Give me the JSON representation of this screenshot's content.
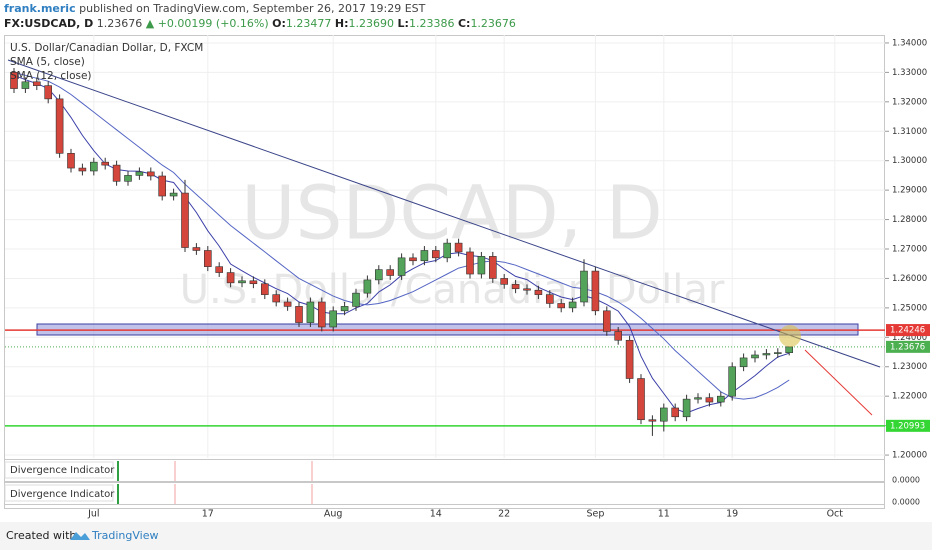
{
  "header": {
    "author": "frank.meric",
    "published": "published on TradingView.com, September 26, 2017 19:29 EST",
    "symbol": "FX:USDCAD, D",
    "price": "1.23676",
    "arrow": "▲",
    "change": "+0.00199 (+0.16%)",
    "ohlc": [
      {
        "key": "O:",
        "value": "1.23477"
      },
      {
        "key": "H:",
        "value": "1.23690"
      },
      {
        "key": "L:",
        "value": "1.23386"
      },
      {
        "key": "C:",
        "value": "1.23676"
      }
    ]
  },
  "chart_data": {
    "type": "candlestick",
    "title": "U.S. Dollar/Canadian Dollar, D, FXCM",
    "watermark": [
      "USDCAD, D",
      "U.S. Dollar/Canadian Dollar"
    ],
    "categories": [
      null,
      null,
      null,
      null,
      null,
      null,
      null,
      "Jul",
      null,
      null,
      null,
      null,
      null,
      null,
      null,
      null,
      null,
      "17",
      null,
      null,
      null,
      null,
      null,
      null,
      null,
      null,
      null,
      null,
      "Aug",
      null,
      null,
      null,
      null,
      null,
      null,
      null,
      null,
      "14",
      null,
      null,
      null,
      null,
      null,
      "22",
      null,
      null,
      null,
      null,
      null,
      null,
      null,
      "Sep",
      null,
      null,
      null,
      null,
      null,
      "11",
      null,
      null,
      null,
      null,
      null,
      "19",
      null,
      null,
      null,
      null,
      null,
      null,
      null,
      null,
      "Oct",
      null,
      null,
      null
    ],
    "open": [
      1.33,
      1.3245,
      1.3268,
      1.3255,
      1.321,
      1.3025,
      1.2975,
      1.2965,
      1.2995,
      1.2985,
      1.293,
      1.295,
      1.2962,
      1.2948,
      1.288,
      1.289,
      1.2705,
      1.2695,
      1.264,
      1.262,
      1.2585,
      1.2592,
      1.2582,
      1.2545,
      1.252,
      1.2505,
      1.245,
      1.252,
      1.2435,
      1.249,
      1.2505,
      1.255,
      1.2595,
      1.263,
      1.261,
      1.267,
      1.266,
      1.2695,
      1.267,
      1.272,
      1.269,
      1.2615,
      1.2675,
      1.26,
      1.258,
      1.2565,
      1.256,
      1.2545,
      1.2515,
      1.25,
      1.252,
      1.2625,
      1.249,
      1.242,
      1.239,
      1.226,
      1.212,
      1.2115,
      1.216,
      1.213,
      1.219,
      1.2195,
      1.218,
      1.22,
      1.23,
      1.233,
      1.234,
      1.2345,
      1.23477,
      null,
      null,
      null,
      null,
      null,
      null,
      null
    ],
    "high": [
      1.3315,
      1.3283,
      1.3283,
      1.327,
      1.3225,
      1.304,
      1.299,
      1.301,
      1.301,
      1.3,
      1.2965,
      1.2977,
      1.2977,
      1.2963,
      1.2905,
      1.2935,
      1.272,
      1.271,
      1.2655,
      1.2635,
      1.2607,
      1.2607,
      1.2597,
      1.256,
      1.2535,
      1.252,
      1.2535,
      1.2535,
      1.2505,
      1.252,
      1.2565,
      1.261,
      1.2645,
      1.2645,
      1.2685,
      1.2685,
      1.271,
      1.271,
      1.2735,
      1.2735,
      1.2705,
      1.269,
      1.269,
      1.2615,
      1.2595,
      1.258,
      1.2575,
      1.256,
      1.253,
      1.2535,
      1.2665,
      1.264,
      1.2505,
      1.2435,
      1.2405,
      1.2275,
      1.2135,
      1.2175,
      1.2175,
      1.2205,
      1.221,
      1.221,
      1.2215,
      1.2315,
      1.2345,
      1.2355,
      1.236,
      1.2363,
      1.2369,
      null,
      null,
      null,
      null,
      null,
      null,
      null
    ],
    "low": [
      1.323,
      1.323,
      1.324,
      1.3195,
      1.301,
      1.296,
      1.295,
      1.295,
      1.297,
      1.2915,
      1.2915,
      1.2935,
      1.2933,
      1.2865,
      1.2865,
      1.269,
      1.268,
      1.2625,
      1.2605,
      1.257,
      1.257,
      1.2567,
      1.253,
      1.2505,
      1.249,
      1.2435,
      1.2435,
      1.242,
      1.242,
      1.2475,
      1.249,
      1.2535,
      1.258,
      1.2595,
      1.2595,
      1.2645,
      1.2645,
      1.2655,
      1.2655,
      1.2675,
      1.26,
      1.26,
      1.2585,
      1.2565,
      1.255,
      1.2545,
      1.253,
      1.25,
      1.2485,
      1.2485,
      1.2505,
      1.2475,
      1.2405,
      1.2375,
      1.2245,
      1.2105,
      1.2065,
      1.208,
      1.2115,
      1.2115,
      1.2175,
      1.2165,
      1.2165,
      1.2185,
      1.2285,
      1.2315,
      1.2325,
      1.233,
      1.23386,
      null,
      null,
      null,
      null,
      null,
      null,
      null
    ],
    "close": [
      1.3245,
      1.3268,
      1.3255,
      1.321,
      1.3025,
      1.2975,
      1.2965,
      1.2995,
      1.2985,
      1.293,
      1.295,
      1.2962,
      1.2948,
      1.288,
      1.289,
      1.2705,
      1.2695,
      1.264,
      1.262,
      1.2585,
      1.2592,
      1.2582,
      1.2545,
      1.252,
      1.2505,
      1.245,
      1.252,
      1.2435,
      1.249,
      1.2505,
      1.255,
      1.2595,
      1.263,
      1.261,
      1.267,
      1.266,
      1.2695,
      1.267,
      1.272,
      1.269,
      1.2615,
      1.2675,
      1.26,
      1.258,
      1.2565,
      1.256,
      1.2545,
      1.2515,
      1.25,
      1.252,
      1.2625,
      1.249,
      1.242,
      1.239,
      1.226,
      1.212,
      1.2115,
      1.216,
      1.213,
      1.219,
      1.2195,
      1.218,
      1.22,
      1.23,
      1.233,
      1.234,
      1.2345,
      1.2348,
      1.23676,
      null,
      null,
      null,
      null,
      null,
      null,
      null
    ],
    "up_color": "#53a35a",
    "down_color": "#d4453b",
    "series": [
      {
        "name": "SMA (5, close)",
        "color": "#3c40a8",
        "values": [
          1.329,
          1.3275,
          1.3262,
          1.3245,
          1.3201,
          1.3147,
          1.3086,
          1.3034,
          1.2989,
          1.297,
          1.2965,
          1.2964,
          1.2955,
          1.2934,
          1.2926,
          1.2877,
          1.2824,
          1.2762,
          1.271,
          1.2649,
          1.2626,
          1.2604,
          1.2585,
          1.2565,
          1.2549,
          1.252,
          1.2508,
          1.2486,
          1.248,
          1.248,
          1.25,
          1.2515,
          1.2554,
          1.2578,
          1.2611,
          1.2633,
          1.2653,
          1.2661,
          1.2683,
          1.2687,
          1.2678,
          1.2674,
          1.266,
          1.2632,
          1.2607,
          1.2596,
          1.257,
          1.2553,
          1.2537,
          1.2528,
          1.2541,
          1.253,
          1.2511,
          1.2489,
          1.2437,
          1.2336,
          1.2261,
          1.2209,
          1.2157,
          1.2143,
          1.2158,
          1.2171,
          1.2179,
          1.2213,
          1.2241,
          1.227,
          1.2303,
          1.2333,
          1.2346,
          null,
          null,
          null,
          null,
          null,
          null,
          null
        ]
      },
      {
        "name": "SMA (12, close)",
        "color": "#5566c4",
        "values": [
          1.33,
          1.329,
          1.328,
          1.327,
          1.325,
          1.3225,
          1.3195,
          1.3165,
          1.3135,
          1.3105,
          1.3075,
          1.3045,
          1.3015,
          1.2985,
          1.296,
          1.292,
          1.2885,
          1.285,
          1.2815,
          1.278,
          1.275,
          1.272,
          1.269,
          1.266,
          1.263,
          1.26,
          1.258,
          1.256,
          1.254,
          1.2525,
          1.2515,
          1.251,
          1.2515,
          1.2525,
          1.254,
          1.2555,
          1.2575,
          1.2595,
          1.2615,
          1.2635,
          1.2645,
          1.2655,
          1.266,
          1.2655,
          1.2645,
          1.263,
          1.2615,
          1.26,
          1.2585,
          1.257,
          1.2565,
          1.2555,
          1.254,
          1.252,
          1.2495,
          1.2465,
          1.243,
          1.2395,
          1.2355,
          1.232,
          1.2285,
          1.225,
          1.2215,
          1.2195,
          1.219,
          1.2195,
          1.221,
          1.223,
          1.2255,
          null,
          null,
          null,
          null,
          null,
          null,
          null
        ]
      }
    ],
    "levels": [
      {
        "value": 1.24246,
        "color": "#e53935"
      },
      {
        "value": 1.23676,
        "color": "#4caf50"
      },
      {
        "value": 1.20993,
        "color": "#33d633"
      }
    ],
    "ylim": [
      1.199,
      1.3427
    ],
    "yticks": [
      {
        "value": 1.34,
        "label": "1.34000"
      },
      {
        "value": 1.33,
        "label": "1.33000"
      },
      {
        "value": 1.32,
        "label": "1.32000"
      },
      {
        "value": 1.31,
        "label": "1.31000"
      },
      {
        "value": 1.3,
        "label": "1.30000"
      },
      {
        "value": 1.29,
        "label": "1.29000"
      },
      {
        "value": 1.28,
        "label": "1.28000"
      },
      {
        "value": 1.27,
        "label": "1.27000"
      },
      {
        "value": 1.26,
        "label": "1.26000"
      },
      {
        "value": 1.25,
        "label": "1.25000"
      },
      {
        "value": 1.24,
        "label": "1.24000"
      },
      {
        "value": 1.23,
        "label": "1.23000"
      },
      {
        "value": 1.22,
        "label": "1.22000"
      },
      {
        "value": 1.21,
        "label": "1.21000"
      },
      {
        "value": 1.2,
        "label": "1.20000"
      }
    ],
    "grid": true
  },
  "indicators": [
    {
      "title": "Divergence Indicator",
      "tick": "0.0000"
    },
    {
      "title": "Divergence Indicator",
      "tick": "0.0000"
    }
  ],
  "footer": {
    "created": "Created with",
    "brand": "TradingView"
  }
}
